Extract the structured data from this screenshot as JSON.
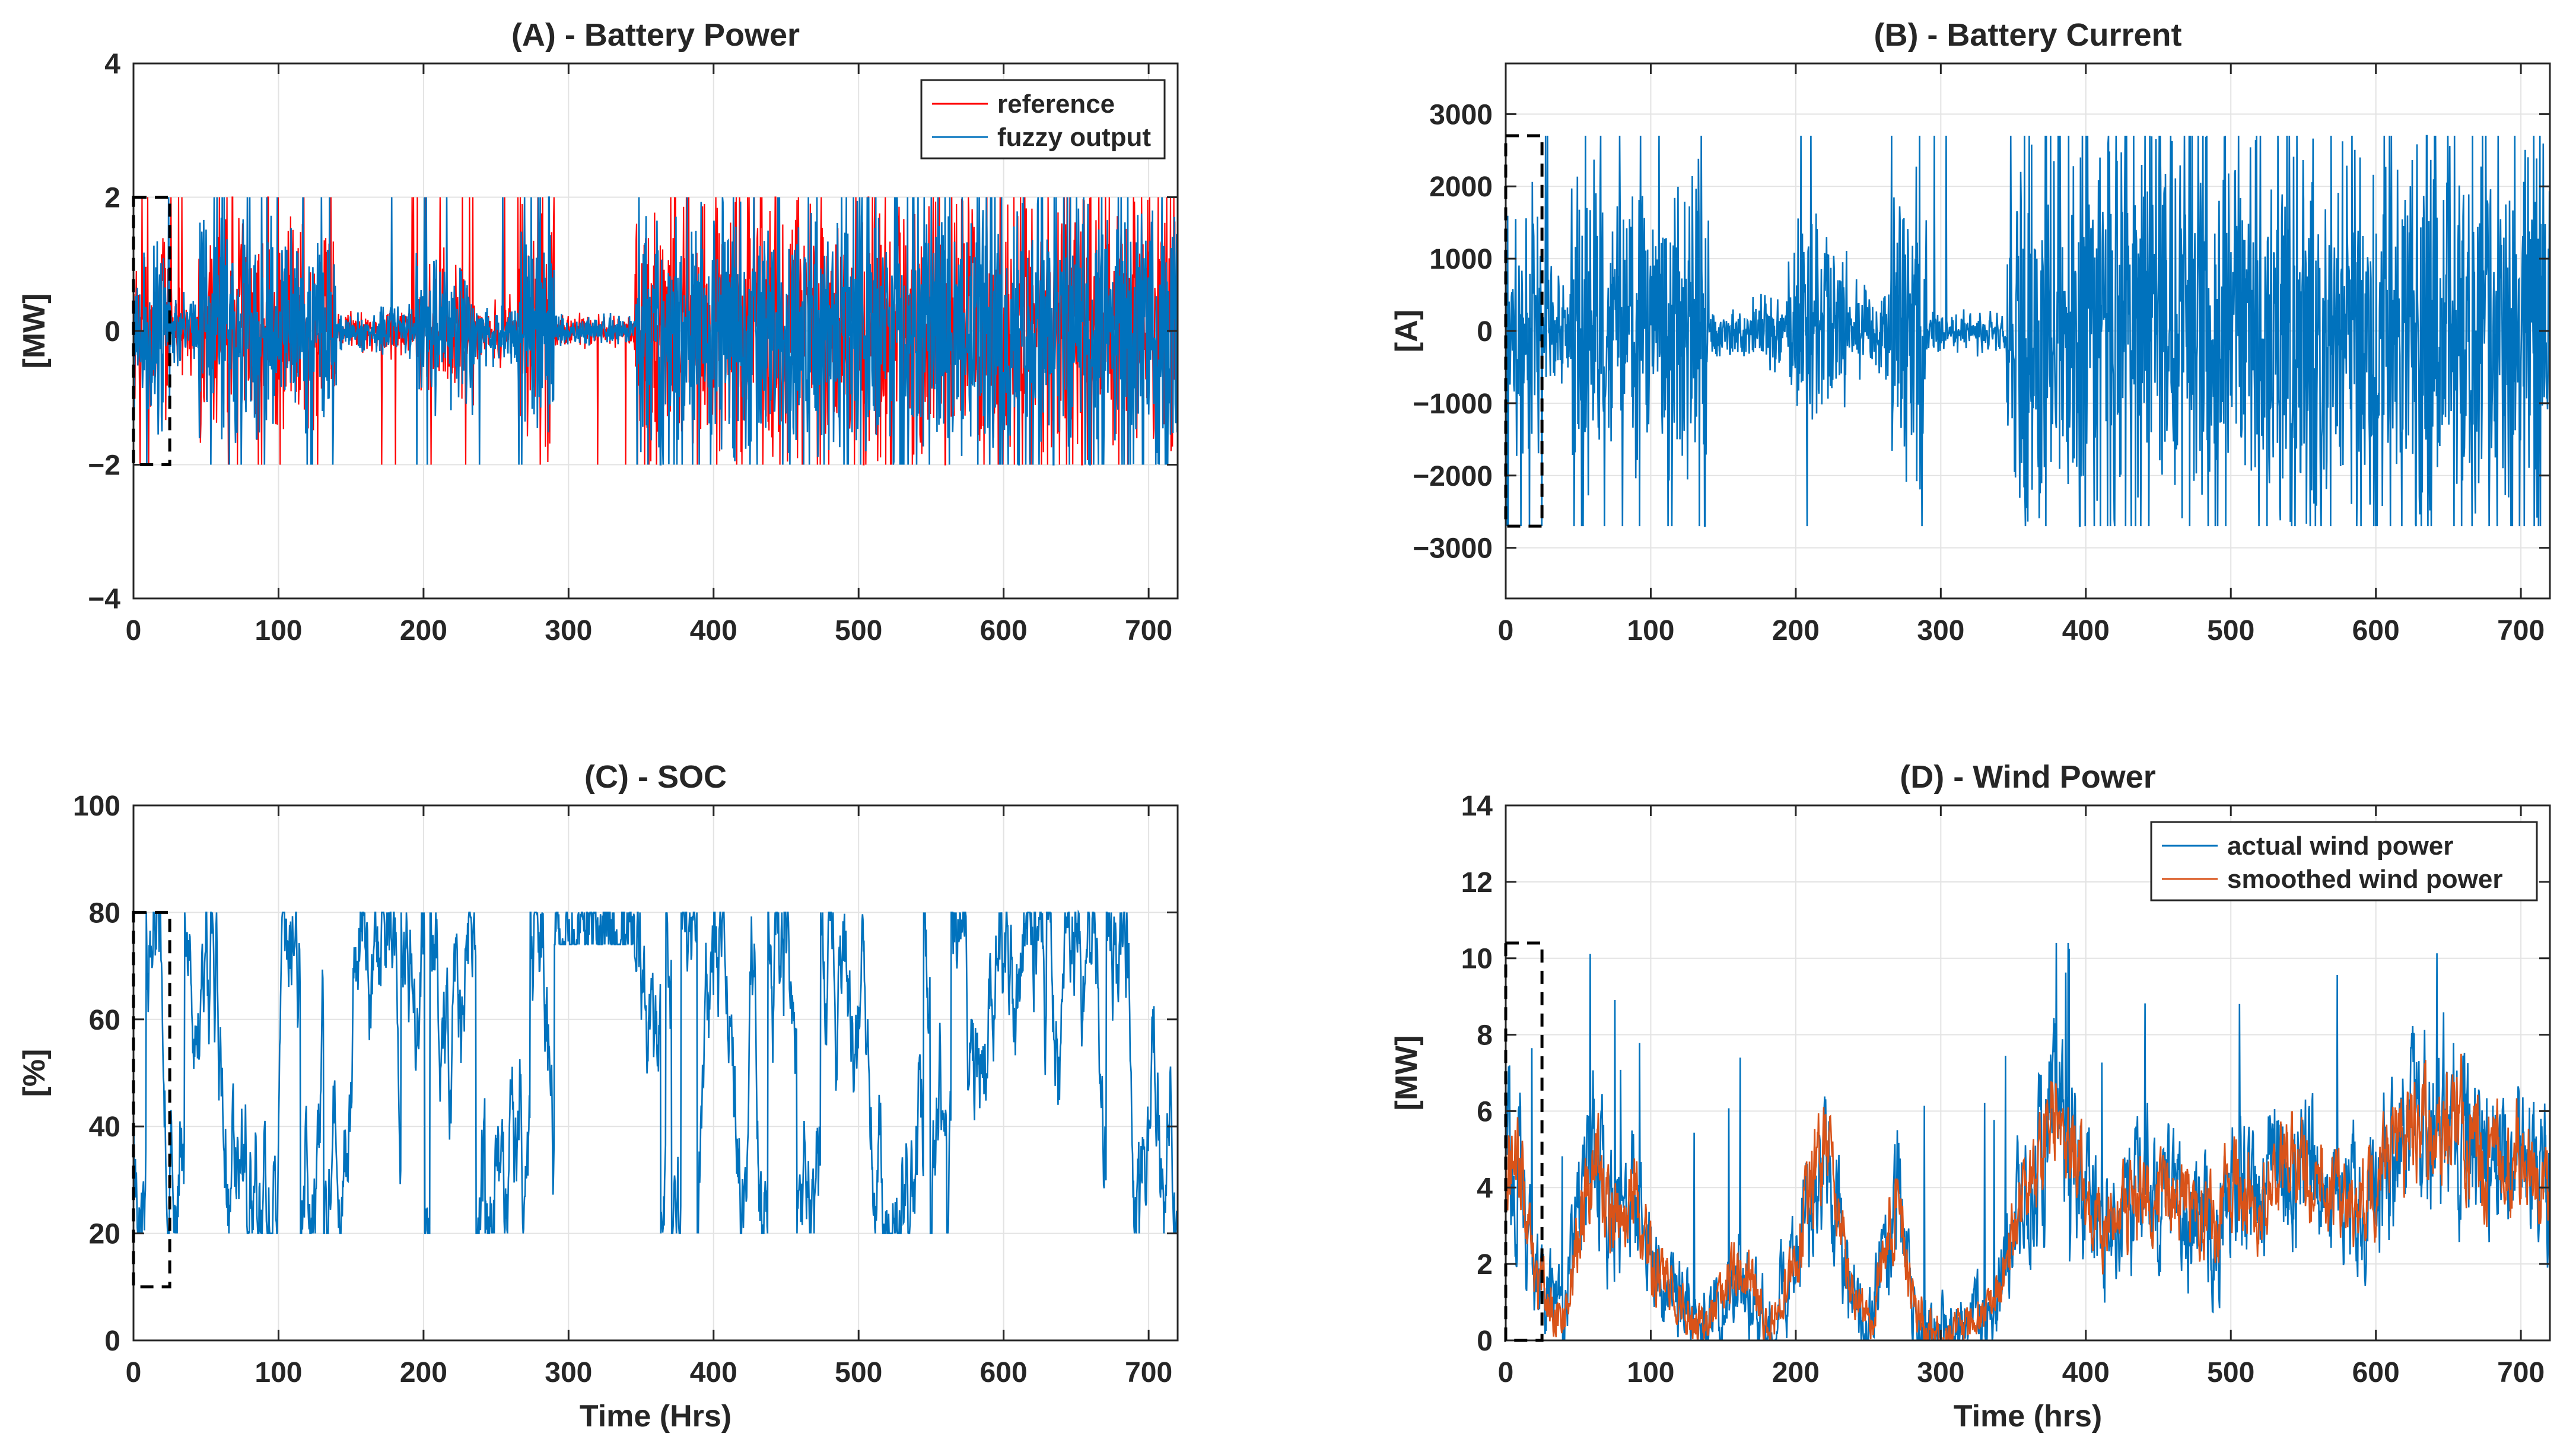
{
  "figure": {
    "note": "Four-panel figure of battery/wind time series over 720 hours"
  },
  "chart_data": [
    {
      "type": "line",
      "title": "(A) - Battery Power",
      "xlabel": "",
      "ylabel": "[MW]",
      "xlim": [
        0,
        720
      ],
      "ylim": [
        -4,
        4
      ],
      "xticks": [
        0,
        100,
        200,
        300,
        400,
        500,
        600,
        700
      ],
      "yticks": [
        -4,
        -2,
        0,
        2,
        4
      ],
      "ytick_labels": [
        "−4",
        "−2",
        "0",
        "2",
        "4"
      ],
      "grid": true,
      "legend": "top-right",
      "series": [
        {
          "name": "reference",
          "color": "#ff0000",
          "generator": "burst",
          "clip": [
            -2,
            2
          ],
          "activity": [
            [
              0,
              25,
              0.7
            ],
            [
              25,
              45,
              0.3
            ],
            [
              45,
              140,
              0.8
            ],
            [
              140,
              170,
              0.15
            ],
            [
              170,
              195,
              0.2
            ],
            [
              195,
              235,
              0.55
            ],
            [
              235,
              265,
              0.25
            ],
            [
              265,
              290,
              0.85
            ],
            [
              290,
              345,
              0.12
            ],
            [
              345,
              720,
              1.0
            ]
          ]
        },
        {
          "name": "fuzzy output",
          "color": "#0072bd",
          "generator": "burst",
          "clip": [
            -2,
            2
          ],
          "activity": [
            [
              0,
              25,
              0.7
            ],
            [
              25,
              45,
              0.3
            ],
            [
              45,
              140,
              0.8
            ],
            [
              140,
              170,
              0.15
            ],
            [
              170,
              195,
              0.2
            ],
            [
              195,
              235,
              0.55
            ],
            [
              235,
              265,
              0.25
            ],
            [
              265,
              290,
              0.85
            ],
            [
              290,
              345,
              0.12
            ],
            [
              345,
              720,
              1.0
            ]
          ]
        }
      ],
      "annotation": "dashed box marks 0–25 hrs, range −2 to 2"
    },
    {
      "type": "line",
      "title": "(B) - Battery Current",
      "xlabel": "",
      "ylabel": "[A]",
      "xlim": [
        0,
        720
      ],
      "ylim": [
        -3700,
        3700
      ],
      "xticks": [
        0,
        100,
        200,
        300,
        400,
        500,
        600,
        700
      ],
      "yticks": [
        -3000,
        -2000,
        -1000,
        0,
        1000,
        2000,
        3000
      ],
      "ytick_labels": [
        "−3000",
        "−2000",
        "−1000",
        "0",
        "1000",
        "2000",
        "3000"
      ],
      "grid": true,
      "series": [
        {
          "name": "battery current",
          "color": "#0072bd",
          "generator": "burst",
          "clip": [
            -2700,
            2700
          ],
          "activity": [
            [
              0,
              25,
              0.7
            ],
            [
              25,
              45,
              0.3
            ],
            [
              45,
              140,
              0.8
            ],
            [
              140,
              170,
              0.15
            ],
            [
              170,
              195,
              0.2
            ],
            [
              195,
              235,
              0.55
            ],
            [
              235,
              265,
              0.25
            ],
            [
              265,
              290,
              0.85
            ],
            [
              290,
              345,
              0.12
            ],
            [
              345,
              720,
              1.0
            ]
          ]
        }
      ],
      "annotation": "dashed box marks 0–25 hrs, range −2700 to 2700"
    },
    {
      "type": "line",
      "title": "(C) - SOC",
      "xlabel": "Time (Hrs)",
      "ylabel": "[%]",
      "xlim": [
        0,
        720
      ],
      "ylim": [
        0,
        100
      ],
      "xticks": [
        0,
        100,
        200,
        300,
        400,
        500,
        600,
        700
      ],
      "yticks": [
        0,
        20,
        40,
        60,
        80,
        100
      ],
      "ytick_labels": [
        "0",
        "20",
        "40",
        "60",
        "80",
        "100"
      ],
      "grid": true,
      "series": [
        {
          "name": "SOC",
          "color": "#0072bd",
          "generator": "soc",
          "clip": [
            20,
            80
          ]
        }
      ],
      "annotation": "dashed box marks 0–25 hrs, range 10 to 80"
    },
    {
      "type": "line",
      "title": "(D) - Wind Power",
      "xlabel": "Time (hrs)",
      "ylabel": "[MW]",
      "xlim": [
        0,
        720
      ],
      "ylim": [
        0,
        14
      ],
      "xticks": [
        0,
        100,
        200,
        300,
        400,
        500,
        600,
        700
      ],
      "yticks": [
        0,
        2,
        4,
        6,
        8,
        10,
        12,
        14
      ],
      "ytick_labels": [
        "0",
        "2",
        "4",
        "6",
        "8",
        "10",
        "12",
        "14"
      ],
      "grid": true,
      "legend": "top-right",
      "series": [
        {
          "name": "actual wind power",
          "color": "#0072bd",
          "generator": "wind",
          "clip": [
            0,
            10.4
          ]
        },
        {
          "name": "smoothed wind power",
          "color": "#d95319",
          "generator": "wind-smooth",
          "clip": [
            0,
            10.4
          ]
        }
      ],
      "wind_profile": [
        [
          0,
          5
        ],
        [
          10,
          4.5
        ],
        [
          20,
          1.5
        ],
        [
          30,
          1
        ],
        [
          40,
          0.5
        ],
        [
          50,
          3
        ],
        [
          60,
          5
        ],
        [
          70,
          3.5
        ],
        [
          80,
          3
        ],
        [
          90,
          4
        ],
        [
          100,
          2
        ],
        [
          120,
          1
        ],
        [
          140,
          0.3
        ],
        [
          160,
          2
        ],
        [
          170,
          1.5
        ],
        [
          180,
          0.3
        ],
        [
          190,
          1
        ],
        [
          200,
          2
        ],
        [
          210,
          4
        ],
        [
          220,
          5
        ],
        [
          230,
          3
        ],
        [
          240,
          1
        ],
        [
          250,
          0.5
        ],
        [
          260,
          2
        ],
        [
          270,
          4
        ],
        [
          280,
          1
        ],
        [
          290,
          0.3
        ],
        [
          300,
          0.2
        ],
        [
          320,
          0.5
        ],
        [
          340,
          1
        ],
        [
          350,
          3
        ],
        [
          360,
          4
        ],
        [
          380,
          6
        ],
        [
          400,
          4
        ],
        [
          410,
          3
        ],
        [
          430,
          3.5
        ],
        [
          450,
          4
        ],
        [
          470,
          3.5
        ],
        [
          490,
          3
        ],
        [
          500,
          4
        ],
        [
          520,
          3.5
        ],
        [
          540,
          5
        ],
        [
          560,
          4
        ],
        [
          580,
          3.5
        ],
        [
          600,
          4
        ],
        [
          620,
          5
        ],
        [
          640,
          6
        ],
        [
          660,
          5.5
        ],
        [
          680,
          4.5
        ],
        [
          700,
          5
        ],
        [
          720,
          4
        ]
      ],
      "annotation": "dashed box marks 0–25 hrs, range 0 to 10.4"
    }
  ]
}
